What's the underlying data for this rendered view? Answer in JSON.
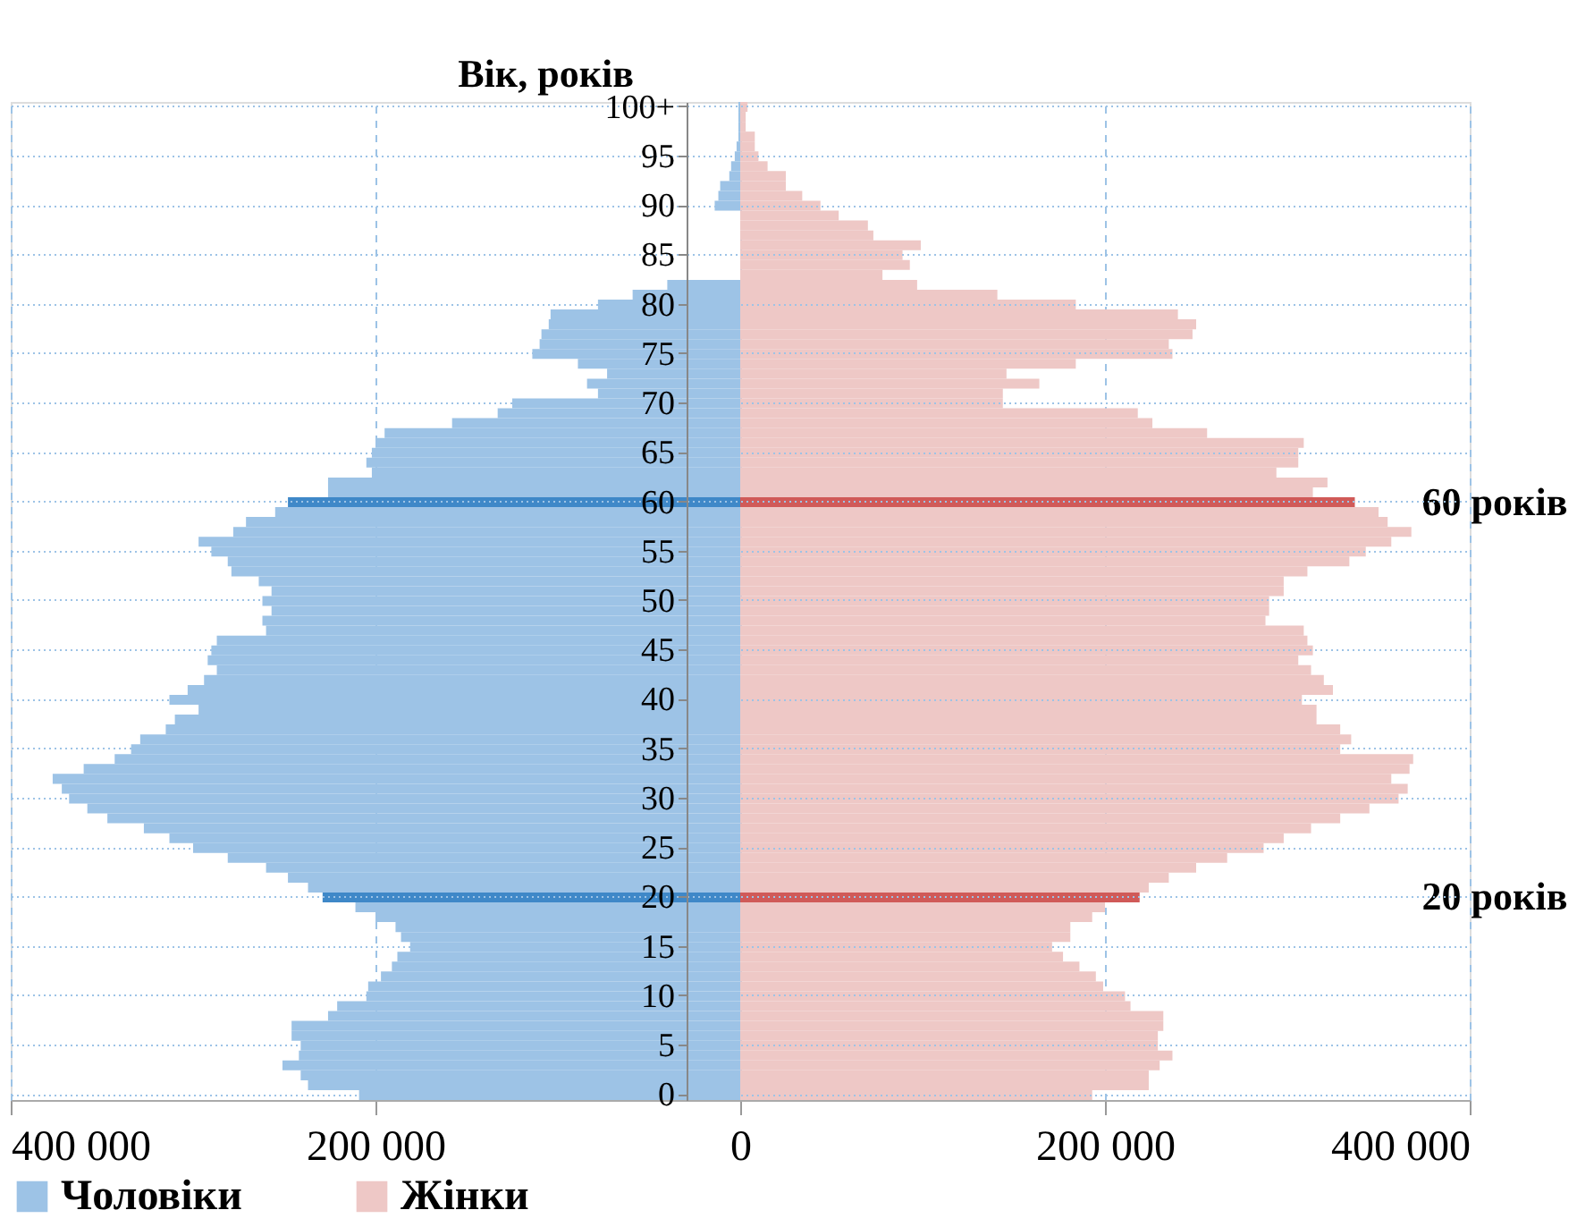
{
  "chart_data": {
    "type": "bar",
    "orientation": "horizontal",
    "ylabel": "Вік, років",
    "categories": [
      "100+",
      null,
      null,
      null,
      null,
      "95",
      null,
      null,
      null,
      null,
      "90",
      null,
      null,
      null,
      null,
      "85",
      null,
      null,
      null,
      null,
      "80",
      null,
      null,
      null,
      null,
      "75",
      null,
      null,
      null,
      null,
      "70",
      null,
      null,
      null,
      null,
      "65",
      null,
      null,
      null,
      null,
      "60",
      null,
      null,
      null,
      null,
      "55",
      null,
      null,
      null,
      null,
      "50",
      null,
      null,
      null,
      null,
      "45",
      null,
      null,
      null,
      null,
      "40",
      null,
      null,
      null,
      null,
      "35",
      null,
      null,
      null,
      null,
      "30",
      null,
      null,
      null,
      null,
      "25",
      null,
      null,
      null,
      null,
      "20",
      null,
      null,
      null,
      null,
      "15",
      null,
      null,
      null,
      null,
      "10",
      null,
      null,
      null,
      null,
      "5",
      null,
      null,
      null,
      null,
      "0"
    ],
    "series": [
      {
        "name": "Чоловіки",
        "color": "#9dc3e6",
        "values": [
          -1000,
          -1000,
          -1000,
          -1000,
          -2000,
          -3000,
          -5000,
          -6000,
          -11000,
          -12000,
          -14000,
          null,
          null,
          null,
          null,
          null,
          null,
          null,
          -40000,
          -59000,
          -78000,
          -104000,
          -105000,
          -109000,
          -110000,
          -114000,
          -89000,
          -73000,
          -84000,
          -78000,
          -125000,
          -133000,
          -158000,
          -195000,
          -200000,
          -202000,
          -205000,
          -202000,
          -226000,
          -226000,
          -248000,
          -255000,
          -271000,
          -278000,
          -297000,
          -290000,
          -281000,
          -279000,
          -264000,
          -257000,
          -262000,
          -257000,
          -262000,
          -260000,
          -287000,
          -290000,
          -292000,
          -287000,
          -294000,
          -303000,
          -313000,
          -297000,
          -310000,
          -315000,
          -329000,
          -334000,
          -343000,
          -360000,
          -377000,
          -372000,
          -368000,
          -358000,
          -347000,
          -327000,
          -313000,
          -300000,
          -281000,
          -260000,
          -248000,
          -237000,
          -229000,
          -211000,
          -200000,
          -189000,
          -186000,
          -181000,
          -188000,
          -191000,
          -197000,
          -204000,
          -205000,
          -221000,
          -226000,
          -246000,
          -246000,
          -241000,
          -242000,
          -251000,
          -241000,
          -237000,
          -209000
        ],
        "colors": [
          "#9dc3e6",
          "#9dc3e6",
          "#9dc3e6",
          "#9dc3e6",
          "#9dc3e6",
          "#9dc3e6",
          "#9dc3e6",
          "#9dc3e6",
          "#9dc3e6",
          "#9dc3e6",
          "#9dc3e6",
          "#9dc3e6",
          "#9dc3e6",
          "#9dc3e6",
          "#9dc3e6",
          "#9dc3e6",
          "#9dc3e6",
          "#9dc3e6",
          "#9dc3e6",
          "#9dc3e6",
          "#9dc3e6",
          "#9dc3e6",
          "#9dc3e6",
          "#9dc3e6",
          "#9dc3e6",
          "#9dc3e6",
          "#9dc3e6",
          "#9dc3e6",
          "#9dc3e6",
          "#9dc3e6",
          "#9dc3e6",
          "#9dc3e6",
          "#9dc3e6",
          "#9dc3e6",
          "#9dc3e6",
          "#9dc3e6",
          "#9dc3e6",
          "#9dc3e6",
          "#9dc3e6",
          "#9dc3e6",
          "#3f88c8",
          "#9dc3e6",
          "#9dc3e6",
          "#9dc3e6",
          "#9dc3e6",
          "#9dc3e6",
          "#9dc3e6",
          "#9dc3e6",
          "#9dc3e6",
          "#9dc3e6",
          "#9dc3e6",
          "#9dc3e6",
          "#9dc3e6",
          "#9dc3e6",
          "#9dc3e6",
          "#9dc3e6",
          "#9dc3e6",
          "#9dc3e6",
          "#9dc3e6",
          "#9dc3e6",
          "#9dc3e6",
          "#9dc3e6",
          "#9dc3e6",
          "#9dc3e6",
          "#9dc3e6",
          "#9dc3e6",
          "#9dc3e6",
          "#9dc3e6",
          "#9dc3e6",
          "#9dc3e6",
          "#9dc3e6",
          "#9dc3e6",
          "#9dc3e6",
          "#9dc3e6",
          "#9dc3e6",
          "#9dc3e6",
          "#9dc3e6",
          "#9dc3e6",
          "#9dc3e6",
          "#9dc3e6",
          "#3f88c8",
          "#9dc3e6",
          "#9dc3e6",
          "#9dc3e6",
          "#9dc3e6",
          "#9dc3e6",
          "#9dc3e6",
          "#9dc3e6",
          "#9dc3e6",
          "#9dc3e6",
          "#9dc3e6",
          "#9dc3e6",
          "#9dc3e6",
          "#9dc3e6",
          "#9dc3e6",
          "#9dc3e6",
          "#9dc3e6",
          "#9dc3e6",
          "#9dc3e6",
          "#9dc3e6",
          "#9dc3e6"
        ]
      },
      {
        "name": "Жінки",
        "color": "#eec8c6",
        "values": [
          4000,
          3000,
          3000,
          8000,
          8000,
          10000,
          15000,
          25000,
          25000,
          34000,
          44000,
          54000,
          70000,
          73000,
          99000,
          89000,
          93000,
          78000,
          97000,
          141000,
          184000,
          240000,
          250000,
          248000,
          235000,
          237000,
          184000,
          146000,
          164000,
          144000,
          144000,
          218000,
          226000,
          256000,
          309000,
          306000,
          306000,
          294000,
          322000,
          314000,
          337000,
          350000,
          355000,
          368000,
          357000,
          343000,
          334000,
          311000,
          298000,
          298000,
          290000,
          290000,
          288000,
          309000,
          311000,
          314000,
          306000,
          313000,
          320000,
          325000,
          308000,
          316000,
          316000,
          329000,
          335000,
          329000,
          369000,
          367000,
          357000,
          366000,
          361000,
          345000,
          329000,
          313000,
          298000,
          287000,
          267000,
          250000,
          235000,
          224000,
          219000,
          200000,
          193000,
          181000,
          181000,
          171000,
          177000,
          186000,
          195000,
          199000,
          211000,
          214000,
          232000,
          232000,
          229000,
          229000,
          237000,
          230000,
          224000,
          224000,
          193000
        ],
        "colors": [
          "#eec8c6",
          "#eec8c6",
          "#eec8c6",
          "#eec8c6",
          "#eec8c6",
          "#eec8c6",
          "#eec8c6",
          "#eec8c6",
          "#eec8c6",
          "#eec8c6",
          "#eec8c6",
          "#eec8c6",
          "#eec8c6",
          "#eec8c6",
          "#eec8c6",
          "#eec8c6",
          "#eec8c6",
          "#eec8c6",
          "#eec8c6",
          "#eec8c6",
          "#eec8c6",
          "#eec8c6",
          "#eec8c6",
          "#eec8c6",
          "#eec8c6",
          "#eec8c6",
          "#eec8c6",
          "#eec8c6",
          "#eec8c6",
          "#eec8c6",
          "#eec8c6",
          "#eec8c6",
          "#eec8c6",
          "#eec8c6",
          "#eec8c6",
          "#eec8c6",
          "#eec8c6",
          "#eec8c6",
          "#eec8c6",
          "#eec8c6",
          "#d05a58",
          "#eec8c6",
          "#eec8c6",
          "#eec8c6",
          "#eec8c6",
          "#eec8c6",
          "#eec8c6",
          "#eec8c6",
          "#eec8c6",
          "#eec8c6",
          "#eec8c6",
          "#eec8c6",
          "#eec8c6",
          "#eec8c6",
          "#eec8c6",
          "#eec8c6",
          "#eec8c6",
          "#eec8c6",
          "#eec8c6",
          "#eec8c6",
          "#eec8c6",
          "#eec8c6",
          "#eec8c6",
          "#eec8c6",
          "#eec8c6",
          "#eec8c6",
          "#eec8c6",
          "#eec8c6",
          "#eec8c6",
          "#eec8c6",
          "#eec8c6",
          "#eec8c6",
          "#eec8c6",
          "#eec8c6",
          "#eec8c6",
          "#eec8c6",
          "#eec8c6",
          "#eec8c6",
          "#eec8c6",
          "#eec8c6",
          "#d05a58",
          "#eec8c6",
          "#eec8c6",
          "#eec8c6",
          "#eec8c6",
          "#eec8c6",
          "#eec8c6",
          "#eec8c6",
          "#eec8c6",
          "#eec8c6",
          "#eec8c6",
          "#eec8c6",
          "#eec8c6",
          "#eec8c6",
          "#eec8c6",
          "#eec8c6",
          "#eec8c6",
          "#eec8c6",
          "#eec8c6",
          "#eec8c6",
          "#eec8c6"
        ]
      }
    ],
    "xlim": [
      -400000,
      400000
    ],
    "xticks": [
      {
        "value": -400000,
        "label": "400 000"
      },
      {
        "value": -200000,
        "label": "200 000"
      },
      0,
      {
        "value": 200000,
        "label": "200 000"
      },
      {
        "value": 400000,
        "label": "400 000"
      }
    ],
    "annotations": [
      "60 років",
      "20 років"
    ],
    "stacked": true,
    "grid": true,
    "legend": "bottom"
  }
}
